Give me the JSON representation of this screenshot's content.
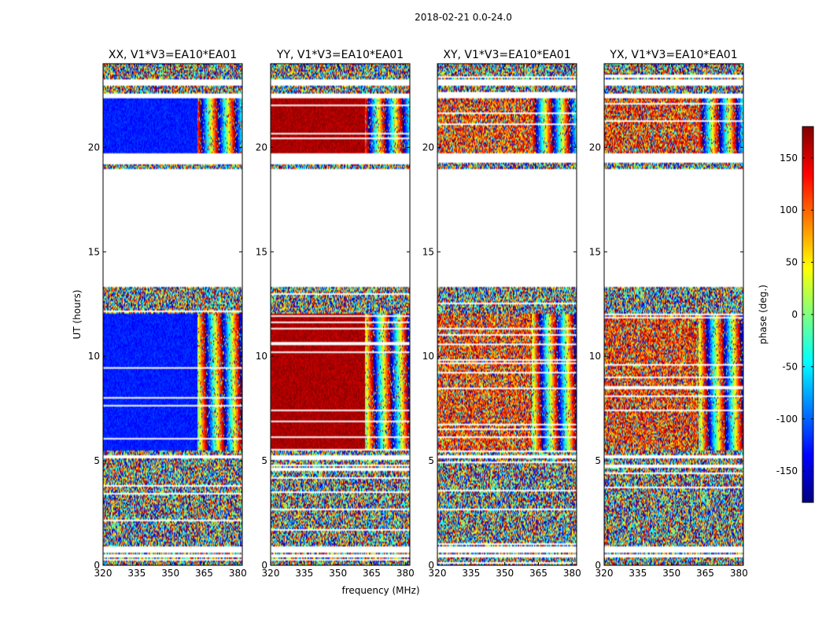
{
  "figure": {
    "suptitle": "2018-02-21 0.0-24.0"
  },
  "chart_data": {
    "type": "heatmap",
    "shared_xlabel": "frequency (MHz)",
    "shared_ylabel": "UT (hours)",
    "xlim": [
      320,
      382
    ],
    "ylim": [
      0,
      24
    ],
    "xticks": [
      320,
      335,
      350,
      365,
      380
    ],
    "yticks": [
      0,
      5,
      10,
      15,
      20
    ],
    "colorbar": {
      "label": "phase (deg.)",
      "range": [
        -180,
        180
      ],
      "ticks": [
        150,
        100,
        50,
        0,
        -50,
        -100,
        -150
      ],
      "colormap": "jet",
      "colors": [
        "#00007f",
        "#0000ff",
        "#007fff",
        "#00ffff",
        "#7fff7f",
        "#ffff00",
        "#ff7f00",
        "#ff0000",
        "#7f0000"
      ]
    },
    "panels": [
      {
        "title": "XX, V1*V3=EA10*EA01",
        "dominant_phase_deg": -125
      },
      {
        "title": "YY, V1*V3=EA10*EA01",
        "dominant_phase_deg": 165
      },
      {
        "title": "XY, V1*V3=EA10*EA01",
        "dominant_phase_deg": 115
      },
      {
        "title": "YX, V1*V3=EA10*EA01",
        "dominant_phase_deg": 120
      }
    ],
    "data_gaps_ut_hours": [
      [
        18.7,
        19.0
      ],
      [
        19.3,
        19.7
      ],
      [
        13.35,
        18.7
      ],
      [
        22.4,
        22.6
      ],
      [
        23.0,
        23.3
      ],
      [
        5.1,
        5.25
      ],
      [
        0.6,
        0.9
      ],
      [
        0.35,
        0.5
      ]
    ],
    "blue_block_ut_hours": [
      5.5,
      12.0
    ],
    "blue_block_freq_mhz": [
      320,
      362
    ]
  }
}
